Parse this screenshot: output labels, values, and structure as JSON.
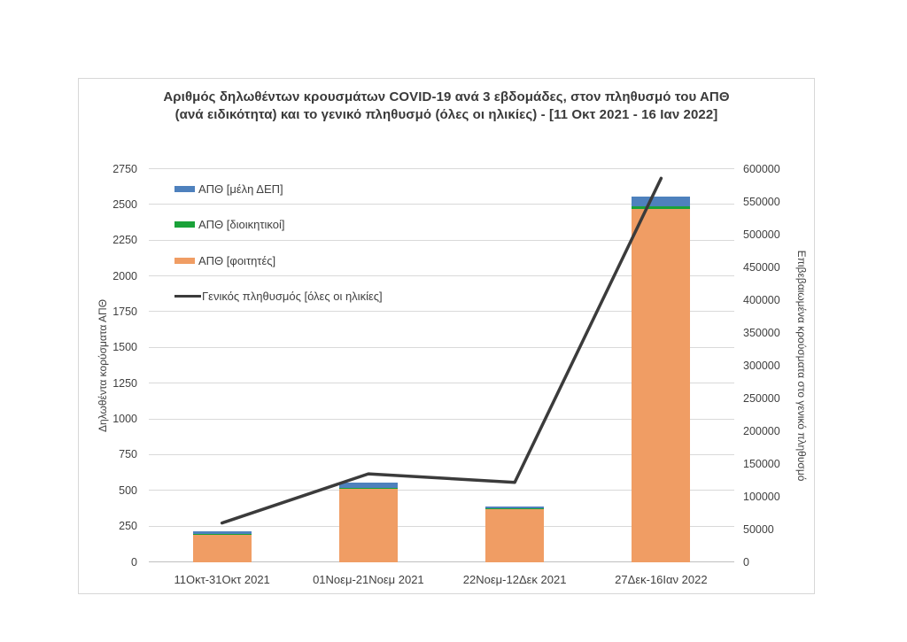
{
  "chart": {
    "title_line1": "Αριθμός δηλωθέντων κρουσμάτων COVID-19 ανά 3 εβδομάδες, στον πληθυσμό του ΑΠΘ",
    "title_line2": "(ανά ειδικότητα) και το γενικό πληθυσμό (όλες οι ηλικίες) - [11 Οκτ 2021 - 16 Ιαν 2022]"
  },
  "chart_data": {
    "type": "bar",
    "subtype": "stacked-bar-with-line-overlay",
    "title": "Αριθμός δηλωθέντων κρουσμάτων COVID-19 ανά 3 εβδομάδες, στον πληθυσμό του ΑΠΘ (ανά ειδικότητα) και το γενικό πληθυσμό (όλες οι ηλικίες) - [11 Οκτ 2021 - 16 Ιαν 2022]",
    "grid": true,
    "legend_position": "inside-top-left",
    "categories": [
      "11Οκτ-31Οκτ 2021",
      "01Νοεμ-21Νοεμ 2021",
      "22Νοεμ-12Δεκ 2021",
      "27Δεκ-16Ιαν 2022"
    ],
    "bar_series": [
      {
        "name": "ΑΠΘ [μέλη ΔΕΠ]",
        "color": "#4e81bd",
        "values": [
          22,
          40,
          17,
          70
        ]
      },
      {
        "name": "ΑΠΘ [διοικητικοί]",
        "color": "#1aa239",
        "values": [
          3,
          5,
          4,
          20
        ]
      },
      {
        "name": "ΑΠΘ [φοιτητές]",
        "color": "#f09d64",
        "values": [
          195,
          515,
          372,
          2470
        ]
      }
    ],
    "line_series": {
      "name": "Γενικός πληθυσμός [όλες οι ηλικίες]",
      "color": "#3b3b3b",
      "axis": "right",
      "values": [
        60000,
        135000,
        122000,
        586000
      ]
    },
    "left_axis": {
      "title": "Δηλωθέντα κορύσματα ΑΠΘ",
      "min": 0,
      "max": 2750,
      "step": 250,
      "ticks": [
        "0",
        "250",
        "500",
        "750",
        "1000",
        "1250",
        "1500",
        "1750",
        "2000",
        "2250",
        "2500",
        "2750"
      ]
    },
    "right_axis": {
      "title": "Επιβεβαιωμένα κρούσματα στο γενικό πληθυσμό",
      "min": 0,
      "max": 600000,
      "step": 50000,
      "ticks": [
        "0",
        "50000",
        "100000",
        "150000",
        "200000",
        "250000",
        "300000",
        "350000",
        "400000",
        "450000",
        "500000",
        "550000",
        "600000"
      ]
    },
    "legend": [
      "ΑΠΘ [μέλη ΔΕΠ]",
      "ΑΠΘ [διοικητικοί]",
      "ΑΠΘ [φοιτητές]",
      "Γενικός πληθυσμός [όλες οι ηλικίες]"
    ]
  },
  "colors": {
    "bar_blue": "#4e81bd",
    "bar_green": "#1aa239",
    "bar_orange": "#f09d64",
    "line_dark": "#3b3b3b",
    "gridline": "#d9d9d9",
    "axis_baseline": "#bfbfbf",
    "text": "#404040",
    "frame_border": "#d7d7d7"
  }
}
